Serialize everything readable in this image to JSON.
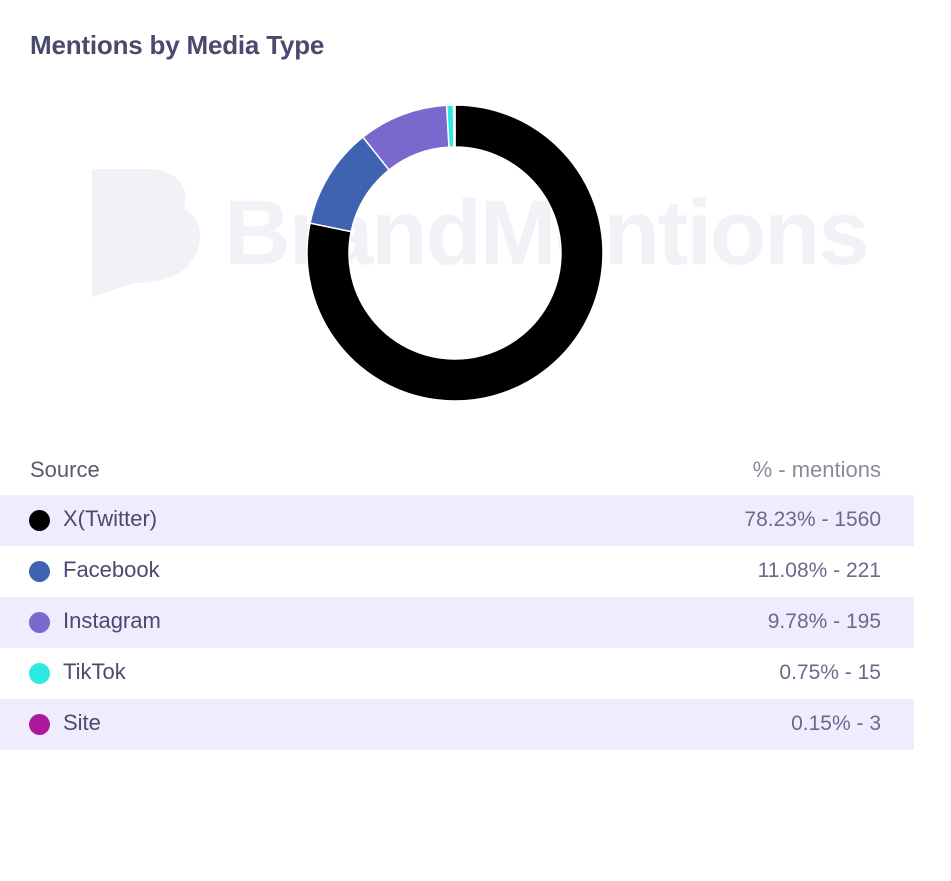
{
  "chart_data": {
    "type": "pie",
    "variant": "donut",
    "title": "Mentions by Media Type",
    "watermark": "BrandMentions",
    "legend_header": {
      "source": "Source",
      "value": "% - mentions"
    },
    "slices": [
      {
        "label": "X(Twitter)",
        "percent": 78.23,
        "mentions": 1560,
        "value_text": "78.23% - 1560",
        "color": "#000000"
      },
      {
        "label": "Facebook",
        "percent": 11.08,
        "mentions": 221,
        "value_text": "11.08% - 221",
        "color": "#3f63b0"
      },
      {
        "label": "Instagram",
        "percent": 9.78,
        "mentions": 195,
        "value_text": "9.78% - 195",
        "color": "#7b68cf"
      },
      {
        "label": "TikTok",
        "percent": 0.75,
        "mentions": 15,
        "value_text": "0.75% - 15",
        "color": "#2de8e3"
      },
      {
        "label": "Site",
        "percent": 0.15,
        "mentions": 3,
        "value_text": "0.15% - 3",
        "color": "#b0189c"
      }
    ]
  }
}
